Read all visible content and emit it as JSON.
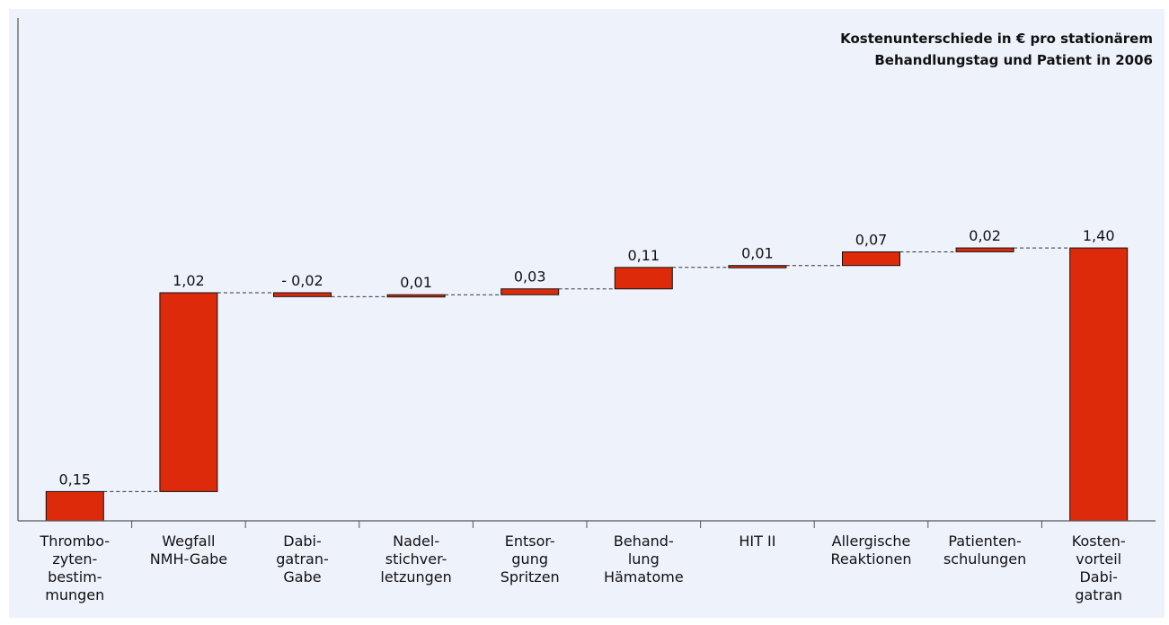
{
  "chart_data": {
    "type": "bar",
    "subtype": "waterfall",
    "title_lines": [
      "Kostenunterschiede in € pro stationärem",
      "Behandlungstag und Patient in 2006"
    ],
    "categories": [
      [
        "Thrombo-",
        "zyten-",
        "bestim-",
        "mungen"
      ],
      [
        "Wegfall",
        "NMH-Gabe"
      ],
      [
        "Dabi-",
        "gatran-",
        "Gabe"
      ],
      [
        "Nadel-",
        "stichver-",
        "letzungen"
      ],
      [
        "Entsor-",
        "gung",
        "Spritzen"
      ],
      [
        "Behand-",
        "lung",
        "Hämatome"
      ],
      [
        "HIT II"
      ],
      [
        "Allergische",
        "Reaktionen"
      ],
      [
        "Patienten-",
        "schulungen"
      ],
      [
        "Kosten-",
        "vorteil",
        "Dabi-",
        "gatran"
      ]
    ],
    "values": [
      0.15,
      1.02,
      -0.02,
      0.01,
      0.03,
      0.11,
      0.01,
      0.07,
      0.02,
      1.4
    ],
    "value_labels": [
      "0,15",
      "1,02",
      "- 0,02",
      "0,01",
      "0,03",
      "0,11",
      "0,01",
      "0,07",
      "0,02",
      "1,40"
    ],
    "total_index": 9,
    "ylim": [
      0,
      2.58
    ],
    "grid": false,
    "legend": "none",
    "colors": {
      "bar": "#dd2a0b",
      "bar_stroke": "#111111",
      "plot_background": "#eef2fb",
      "connector": "#333333"
    }
  }
}
